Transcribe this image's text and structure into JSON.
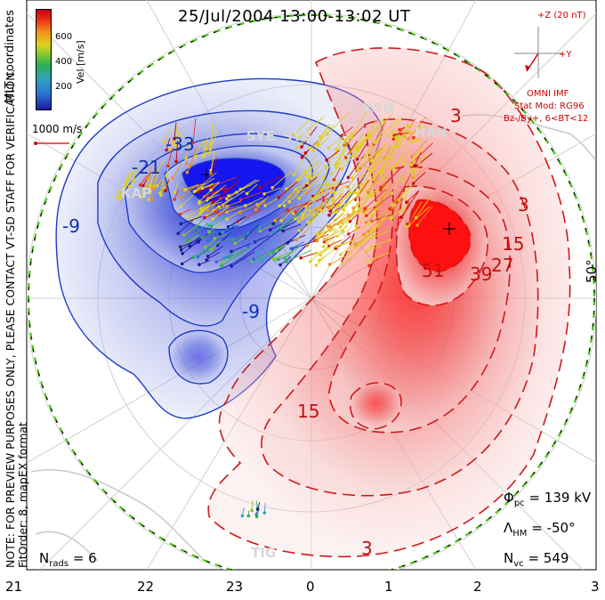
{
  "title": "25/Jul/2004 13:00-13:02 UT",
  "side_labels": {
    "coordinates": "MLT coordinates",
    "notice": "NOTE: FOR PREVIEW PURPOSES ONLY, PLEASE CONTACT VT-SD STAFF FOR VERIFICATION.",
    "fit": "FitOrder: 8, mapEX format"
  },
  "colorbar": {
    "label": "Vel [m/s]",
    "ticks": [
      "600",
      "400",
      "200"
    ],
    "colors": [
      "#1a1aa0",
      "#2d6fd0",
      "#30a0c0",
      "#2db050",
      "#80c830",
      "#e0d020",
      "#f09020",
      "#e83018",
      "#c80010"
    ]
  },
  "scale_vector": "1000 m/s",
  "imf": {
    "z_label": "+Z (20 nT)",
    "y_label": "+Y",
    "source": "OMNI IMF",
    "model": "Stat Mod: RG96",
    "condition": "Bz-/By+, 6<BT<12"
  },
  "stats": {
    "phi_symbol": "Φ",
    "phi_sub": "pc",
    "phi_value": "= 139 kV",
    "lambda_symbol": "Λ",
    "lambda_sub": "HM",
    "lambda_value": "= -50°",
    "nvc_symbol": "N",
    "nvc_sub": "vc",
    "nvc_value": "= 549",
    "nrads_symbol": "N",
    "nrads_sub": "rads",
    "nrads_value": "= 6"
  },
  "latitude_label": "50°",
  "x_axis_ticks": [
    "21",
    "22",
    "23",
    "0",
    "1",
    "2",
    "3"
  ],
  "radars": [
    "SYE",
    "SYS",
    "KSN",
    "HAN",
    "KAP",
    "TIG"
  ],
  "contour_labels_negative": [
    "-9",
    "-21",
    "-9",
    "-33"
  ],
  "contour_labels_positive": [
    "3",
    "3",
    "15",
    "27",
    "39",
    "51",
    "15",
    "3"
  ],
  "colors": {
    "convection_negative": "#1e3cc8",
    "convection_positive": "#e01e1e",
    "boundary": "#00c000"
  }
}
